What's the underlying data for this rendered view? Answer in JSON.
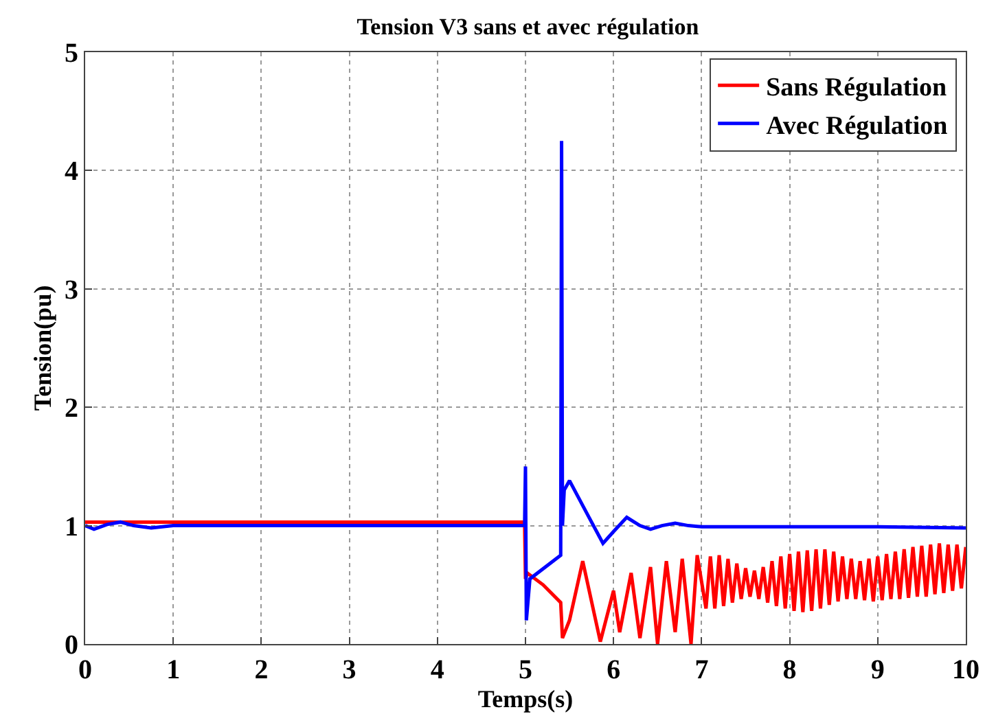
{
  "chart_data": {
    "type": "line",
    "title": "Tension V3 sans et avec régulation",
    "xlabel": "Temps(s)",
    "ylabel": "Tension(pu)",
    "xlim": [
      0,
      10
    ],
    "xticks": [
      0,
      1,
      2,
      3,
      4,
      5,
      6,
      7,
      8,
      9,
      10
    ],
    "ylim": [
      0,
      5
    ],
    "yticks": [
      0,
      1,
      2,
      3,
      4,
      5
    ],
    "grid": true,
    "legend": "top right",
    "series": [
      {
        "name": "Sans Régulation",
        "color": "#ff0000",
        "x": [
          0,
          4.99,
          5,
          5.02,
          5.2,
          5.4,
          5.42,
          5.5,
          5.65,
          5.85,
          6.0,
          6.07,
          6.2,
          6.3,
          6.42,
          6.5,
          6.6,
          6.7,
          6.78,
          6.88,
          6.95,
          7.05,
          7.1,
          7.15,
          7.2,
          7.25,
          7.3,
          7.35,
          7.4,
          7.45,
          7.5,
          7.55,
          7.6,
          7.65,
          7.7,
          7.75,
          7.8,
          7.85,
          7.9,
          7.95,
          8.0,
          8.05,
          8.1,
          8.15,
          8.2,
          8.25,
          8.3,
          8.35,
          8.4,
          8.45,
          8.5,
          8.55,
          8.6,
          8.65,
          8.7,
          8.75,
          8.8,
          8.85,
          8.9,
          8.95,
          9.0,
          9.05,
          9.1,
          9.15,
          9.2,
          9.25,
          9.3,
          9.35,
          9.4,
          9.45,
          9.5,
          9.55,
          9.6,
          9.65,
          9.7,
          9.75,
          9.8,
          9.85,
          9.9,
          9.95,
          10.0
        ],
        "values": [
          1.03,
          1.03,
          0.55,
          0.6,
          0.5,
          0.35,
          0.05,
          0.2,
          0.7,
          0.02,
          0.45,
          0.1,
          0.6,
          0.05,
          0.65,
          0.0,
          0.7,
          0.1,
          0.72,
          0.0,
          0.75,
          0.3,
          0.74,
          0.3,
          0.75,
          0.32,
          0.72,
          0.35,
          0.68,
          0.38,
          0.64,
          0.4,
          0.62,
          0.38,
          0.65,
          0.35,
          0.7,
          0.32,
          0.74,
          0.3,
          0.76,
          0.28,
          0.78,
          0.27,
          0.79,
          0.28,
          0.8,
          0.3,
          0.8,
          0.33,
          0.78,
          0.36,
          0.74,
          0.38,
          0.72,
          0.38,
          0.7,
          0.37,
          0.72,
          0.36,
          0.74,
          0.37,
          0.76,
          0.38,
          0.78,
          0.38,
          0.8,
          0.39,
          0.82,
          0.4,
          0.83,
          0.4,
          0.84,
          0.42,
          0.85,
          0.43,
          0.84,
          0.45,
          0.84,
          0.47,
          0.82
        ]
      },
      {
        "name": "Avec Régulation",
        "color": "#0000ff",
        "x": [
          0,
          0.1,
          0.25,
          0.4,
          0.55,
          0.75,
          1.0,
          4.99,
          5.0,
          5.01,
          5.05,
          5.4,
          5.41,
          5.42,
          5.44,
          5.5,
          5.7,
          5.88,
          6.0,
          6.15,
          6.3,
          6.42,
          6.55,
          6.7,
          6.85,
          7.0,
          8.0,
          9.0,
          10.0
        ],
        "values": [
          1.0,
          0.97,
          1.01,
          1.03,
          1.0,
          0.98,
          1.0,
          1.0,
          1.5,
          0.2,
          0.55,
          0.75,
          4.25,
          1.0,
          1.3,
          1.38,
          1.1,
          0.85,
          0.95,
          1.07,
          1.0,
          0.97,
          1.0,
          1.02,
          1.0,
          0.99,
          0.99,
          0.99,
          0.98
        ]
      }
    ]
  }
}
